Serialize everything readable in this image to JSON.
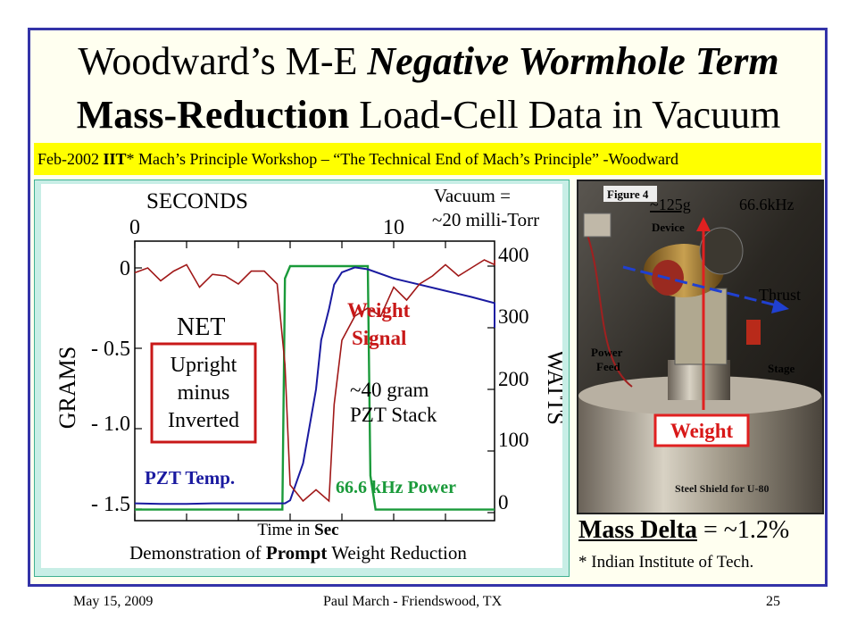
{
  "slide": {
    "title_line1_a": "Woodward’s M-E ",
    "title_line1_b": "Negative Wormhole Term",
    "title_line2_a": "Mass-Reduction",
    "title_line2_b": " Load-Cell Data in Vacuum",
    "banner_a": "Feb-2002 ",
    "banner_b": "IIT",
    "banner_c": "* Mach’s Principle Workshop – “The Technical End of Mach’s Principle” -Woodward",
    "mass_delta_label": "Mass Delta",
    "mass_delta_value": " = ~1.2%",
    "iit_note": "* Indian Institute of Tech.",
    "footer_date": "May 15, 2009",
    "footer_author": "Paul March - Friendswood, TX",
    "footer_page": "25",
    "frame_color": "#3333a8",
    "banner_color": "#ffff00"
  },
  "chart": {
    "top_axis_label": "SECONDS",
    "top_ticks": [
      "0",
      "10"
    ],
    "vacuum_line1": "Vacuum =",
    "vacuum_line2": "~20 milli-Torr",
    "left_axis_label": "GRAMS",
    "left_ticks": [
      "0",
      "- 0.5",
      "- 1.0",
      "- 1.5"
    ],
    "right_axis_label": "WATTS",
    "right_ticks": [
      "400",
      "300",
      "200",
      "100",
      "0"
    ],
    "net_label": "NET",
    "box_line1": "Upright",
    "box_line2": "minus",
    "box_line3": "Inverted",
    "weight_signal_line1": "Weight",
    "weight_signal_line2": "Signal",
    "pzt_line1": "~40 gram",
    "pzt_line2": "PZT Stack",
    "pzt_temp": "PZT Temp.",
    "power_label": "66.6 kHz Power",
    "time_a": "Time in ",
    "time_b": "Sec",
    "caption_a": "Demonstration of ",
    "caption_b": "Prompt",
    "caption_c": " Weight Reduction",
    "colors": {
      "weight": "#a01818",
      "temp": "#1a1aa0",
      "power": "#1a9a3a",
      "box": "#c81818"
    }
  },
  "photo": {
    "figure_label": "Figure 4",
    "mass_label": "~125g",
    "freq_label": "66.6kHz",
    "device_label": "Device",
    "thrust_label": "Thrust",
    "power_feed_line1": "Power",
    "power_feed_line2": "Feed",
    "stage_label": "Stage",
    "weight_label": "Weight",
    "shield_label": "Steel Shield for U-80",
    "colors": {
      "arrow_red": "#e02020",
      "arrow_blue": "#2040d0"
    }
  },
  "chart_data": {
    "type": "line",
    "x_axis_label": "SECONDS",
    "x_ticks": [
      0,
      10
    ],
    "left_axis": {
      "label": "GRAMS",
      "ticks": [
        0,
        -0.5,
        -1.0,
        -1.5
      ],
      "range": [
        -1.6,
        0.1
      ]
    },
    "right_axis": {
      "label": "WATTS",
      "ticks": [
        400,
        300,
        200,
        100,
        0
      ],
      "range": [
        -20,
        420
      ]
    },
    "series": [
      {
        "name": "Weight Signal",
        "axis": "left",
        "x": [
          0,
          0.5,
          1,
          1.5,
          2,
          2.5,
          3,
          3.5,
          4,
          4.5,
          5,
          5.5,
          5.8,
          6,
          6.5,
          7,
          7.5,
          7.7,
          8,
          8.5,
          9,
          9.5,
          10,
          10.5,
          11,
          11.5,
          12,
          12.5,
          13,
          13.5,
          14,
          14.5,
          15,
          15.5
        ],
        "y": [
          -0.03,
          0.0,
          -0.08,
          -0.02,
          0.02,
          -0.12,
          -0.04,
          -0.05,
          -0.1,
          -0.02,
          -0.02,
          -0.1,
          -0.6,
          -1.35,
          -1.45,
          -1.38,
          -1.45,
          -0.85,
          -0.45,
          -0.3,
          -0.25,
          -0.3,
          -0.12,
          -0.2,
          -0.1,
          -0.05,
          0.02,
          -0.05,
          0.0,
          0.05,
          0.02,
          0.03,
          0.05,
          0.05
        ]
      },
      {
        "name": "PZT Temp.",
        "axis": "right",
        "x": [
          0,
          1,
          2,
          3,
          4,
          5,
          5.8,
          6,
          6.5,
          7,
          7.2,
          7.5,
          7.7,
          8,
          8.5,
          9,
          10,
          11,
          12,
          13,
          14,
          15,
          15.5
        ],
        "y": [
          15,
          14,
          14,
          15,
          15,
          15,
          15,
          20,
          80,
          200,
          280,
          330,
          370,
          390,
          398,
          395,
          380,
          370,
          360,
          350,
          340,
          310,
          300
        ]
      },
      {
        "name": "66.6 kHz Power",
        "axis": "right",
        "x": [
          0,
          2,
          4,
          5.7,
          5.8,
          6,
          7,
          8,
          9.0,
          9.1,
          9.3,
          10,
          12,
          15.5
        ],
        "y": [
          5,
          5,
          5,
          5,
          380,
          400,
          400,
          400,
          400,
          60,
          5,
          5,
          5,
          5
        ]
      }
    ]
  }
}
